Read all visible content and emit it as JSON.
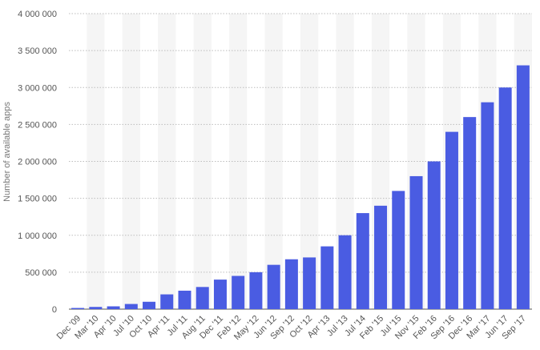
{
  "chart_data": {
    "type": "bar",
    "title": "",
    "xlabel": "",
    "ylabel": "Number of available apps",
    "ylim": [
      0,
      4000000
    ],
    "yticks": [
      0,
      500000,
      1000000,
      1500000,
      2000000,
      2500000,
      3000000,
      3500000,
      4000000
    ],
    "ytick_labels": [
      "0",
      "500 000",
      "1 000 000",
      "1 500 000",
      "2 000 000",
      "2 500 000",
      "3 000 000",
      "3 500 000",
      "4 000 000"
    ],
    "grid": "horizontal dotted",
    "legend": "none",
    "bar_color": "#4a5ce2",
    "band_color": "#f5f5f5",
    "categories": [
      "Dec '09",
      "Mar '10",
      "Apr '10",
      "Jul '10",
      "Oct '10",
      "Apr '11",
      "Jul '11",
      "Aug '11",
      "Dec '11",
      "Feb '12",
      "May '12",
      "Jun '12",
      "Sep '12",
      "Oct '12",
      "Apr '13",
      "Jul '13",
      "Jul '14",
      "Feb '15",
      "Jul '15",
      "Nov '15",
      "Feb '16",
      "Sep '16",
      "Dec '16",
      "Mar '17",
      "Jun '17",
      "Sep '17"
    ],
    "values": [
      16000,
      30000,
      38000,
      70000,
      100000,
      200000,
      250000,
      300000,
      400000,
      450000,
      500000,
      600000,
      675000,
      700000,
      850000,
      1000000,
      1300000,
      1400000,
      1600000,
      1800000,
      2000000,
      2400000,
      2600000,
      2800000,
      3000000,
      3300000
    ]
  }
}
